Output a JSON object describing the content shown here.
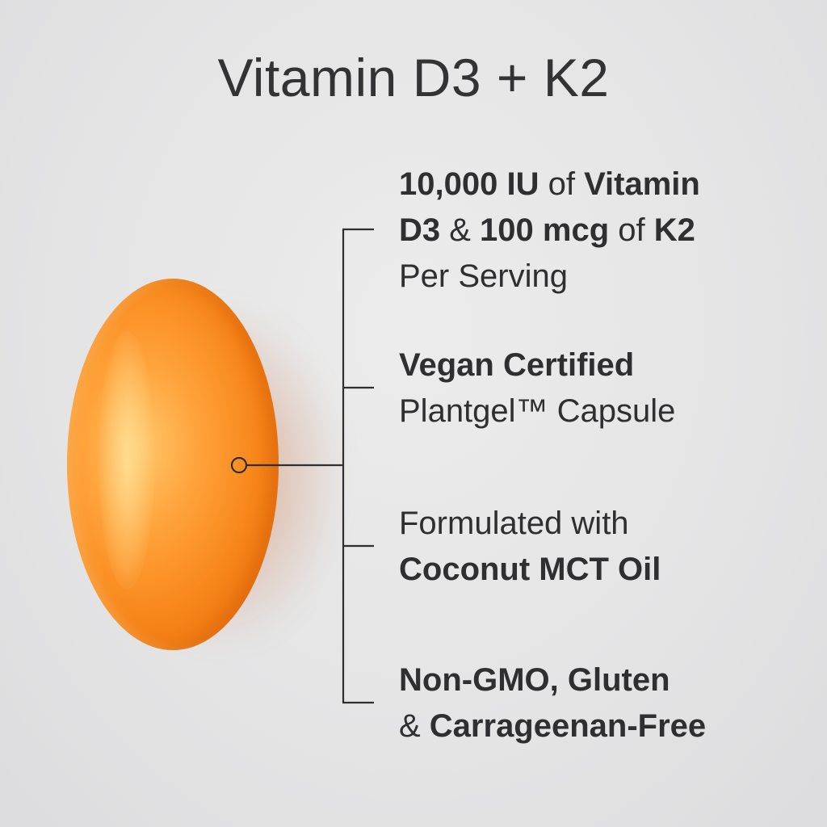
{
  "title": "Vitamin D3 + K2",
  "colors": {
    "text": "#2f2f31",
    "capsule": "#f7861a",
    "background": "#e6e6e7"
  },
  "features": [
    {
      "lines": [
        [
          {
            "t": "10,000 IU",
            "b": true
          },
          {
            "t": " of ",
            "b": false
          },
          {
            "t": "Vitamin",
            "b": true
          }
        ],
        [
          {
            "t": "D3",
            "b": true
          },
          {
            "t": " & ",
            "b": false
          },
          {
            "t": "100 mcg",
            "b": true
          },
          {
            "t": " of ",
            "b": false
          },
          {
            "t": "K2",
            "b": true
          }
        ],
        [
          {
            "t": "Per Serving",
            "b": false
          }
        ]
      ]
    },
    {
      "lines": [
        [
          {
            "t": "Vegan Certified",
            "b": true
          }
        ],
        [
          {
            "t": "Plantgel™ Capsule",
            "b": false
          }
        ]
      ]
    },
    {
      "lines": [
        [
          {
            "t": "Formulated with",
            "b": false
          }
        ],
        [
          {
            "t": "Coconut MCT Oil",
            "b": true
          }
        ]
      ]
    },
    {
      "lines": [
        [
          {
            "t": "Non-GMO, Gluten",
            "b": true
          }
        ],
        [
          {
            "t": "& ",
            "b": false
          },
          {
            "t": "Carrageenan-Free",
            "b": true
          }
        ]
      ]
    }
  ]
}
